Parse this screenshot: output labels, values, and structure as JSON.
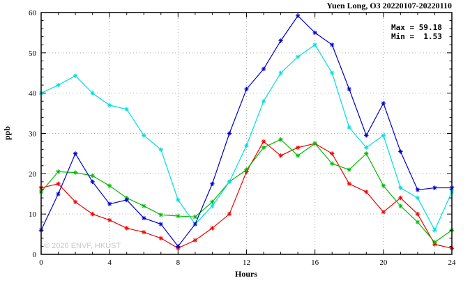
{
  "title": "Yuen Long, O3 20220107-20220110",
  "annotation": {
    "max_label": "Max = 59.18",
    "min_label": "Min =  1.53"
  },
  "watermark": "© 2026 ENVF, HKUST",
  "chart_data": {
    "type": "line",
    "title": "Yuen Long, O3 20220107-20220110",
    "xlabel": "Hours",
    "ylabel": "ppb",
    "xlim": [
      0,
      24
    ],
    "ylim": [
      0,
      60
    ],
    "x_ticks": [
      0,
      4,
      8,
      12,
      16,
      20,
      24
    ],
    "y_ticks": [
      0,
      10,
      20,
      30,
      40,
      50,
      60
    ],
    "x_minor_step": 1,
    "y_minor_step": 2,
    "grid": true,
    "legend_position": "none",
    "stats": {
      "max": 59.18,
      "min": 1.53
    },
    "marker": "asterisk",
    "x": [
      0,
      1,
      2,
      3,
      4,
      5,
      6,
      7,
      8,
      9,
      10,
      11,
      12,
      13,
      14,
      15,
      16,
      17,
      18,
      19,
      20,
      21,
      22,
      23,
      24
    ],
    "series": [
      {
        "name": "red",
        "color": "#ee0000",
        "values": [
          16.5,
          17.5,
          13,
          10,
          8.5,
          6.5,
          5.5,
          4,
          1.53,
          3.5,
          6.5,
          10,
          20.5,
          28,
          24.5,
          26.5,
          27.5,
          25,
          17.5,
          15.5,
          10.5,
          14,
          10,
          2.5,
          1.5
        ]
      },
      {
        "name": "green",
        "color": "#00bb00",
        "values": [
          15.5,
          20.5,
          20.3,
          19.5,
          17,
          14,
          12,
          9.8,
          9.5,
          9.3,
          13,
          18,
          21,
          26.5,
          28.5,
          24.5,
          27.5,
          22.5,
          21,
          25,
          17,
          12,
          8,
          3,
          6
        ]
      },
      {
        "name": "cyan",
        "color": "#00dddd",
        "values": [
          40,
          42,
          44.3,
          40,
          37,
          36,
          29.5,
          26,
          13.5,
          7.5,
          12,
          18,
          27,
          38,
          45,
          49,
          52,
          45,
          31.5,
          26.5,
          29.5,
          16.5,
          14,
          6,
          15.5
        ]
      },
      {
        "name": "blue",
        "color": "#0000cc",
        "values": [
          6,
          15,
          25,
          18,
          12.5,
          13.5,
          9,
          7.5,
          2,
          7.5,
          17.5,
          30,
          41,
          46,
          53,
          59.18,
          55,
          52,
          41,
          29.5,
          37.5,
          25.5,
          16,
          16.5,
          16.5
        ]
      }
    ]
  }
}
